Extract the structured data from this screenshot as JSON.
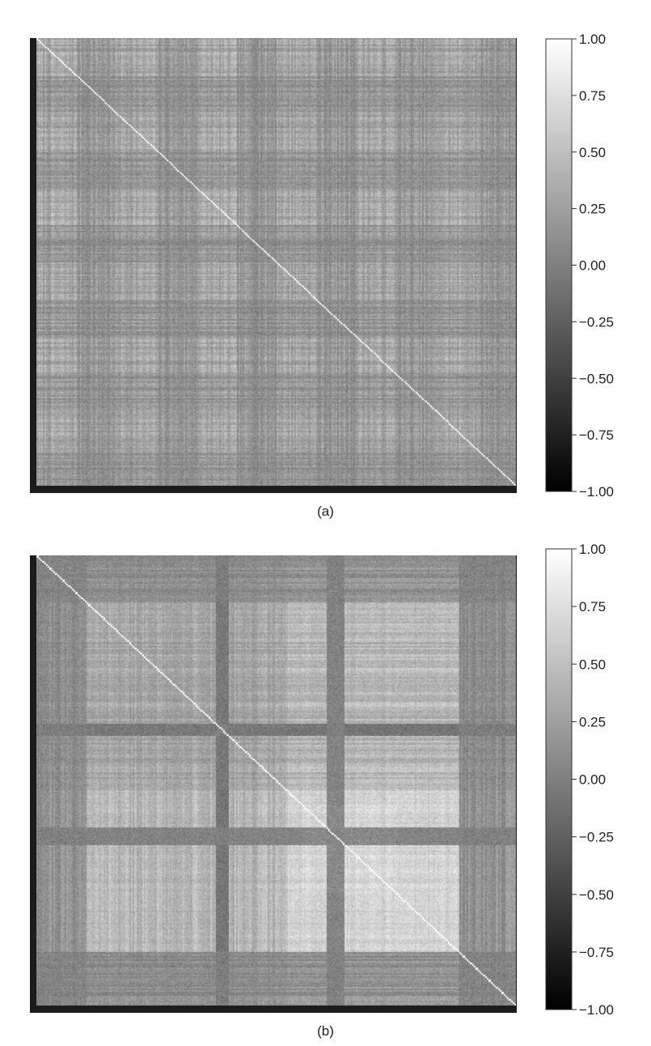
{
  "chart_data": [
    {
      "type": "heatmap",
      "panel_label": "(a)",
      "colormap": "grayscale (black = -1.00, white = 1.00)",
      "colorbar": {
        "min": -1.0,
        "max": 1.0,
        "ticks": [
          1.0,
          0.75,
          0.5,
          0.25,
          0.0,
          -0.25,
          -0.5,
          -0.75,
          -1.0
        ],
        "tick_labels": [
          "1.00",
          "0.75",
          "0.50",
          "0.25",
          "0.00",
          "−0.25",
          "−0.50",
          "−0.75",
          "−1.00"
        ]
      },
      "grid": false
    },
    {
      "type": "heatmap",
      "panel_label": "(b)",
      "colormap": "grayscale (black = -1.00, white = 1.00)",
      "colorbar": {
        "min": -1.0,
        "max": 1.0,
        "ticks": [
          1.0,
          0.75,
          0.5,
          0.25,
          0.0,
          -0.25,
          -0.5,
          -0.75,
          -1.0
        ],
        "tick_labels": [
          "1.00",
          "0.75",
          "0.50",
          "0.25",
          "0.00",
          "−0.25",
          "−0.50",
          "−0.75",
          "−1.00"
        ]
      },
      "grid": false
    }
  ],
  "colors": {
    "frame": "#1c1c1c",
    "low": "#000000",
    "high": "#ffffff"
  }
}
